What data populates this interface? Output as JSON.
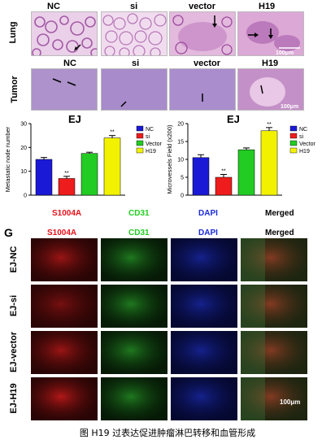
{
  "he_panels": {
    "columns": [
      "NC",
      "si",
      "vector",
      "H19"
    ],
    "row_labels": [
      "Lung",
      "Tumor"
    ],
    "scale_bar": "100μm"
  },
  "charts_title": "EJ",
  "chart_data": [
    {
      "type": "bar",
      "title": "EJ",
      "ylabel": "Metastatic node number",
      "categories": [
        "NC",
        "si",
        "Vector",
        "H19"
      ],
      "values": [
        15,
        7,
        17.5,
        24
      ],
      "errors": [
        0.8,
        0.9,
        0.5,
        1.0
      ],
      "significance": [
        "",
        "**",
        "",
        "**"
      ],
      "ylim": [
        0,
        30
      ],
      "yticks": [
        0,
        10,
        20,
        30
      ],
      "legend": [
        "NC",
        "si",
        "Vector",
        "H19"
      ],
      "legend_position": "top-right",
      "colors": [
        "#1a1ad6",
        "#ee1c1c",
        "#22cc22",
        "#f2f200"
      ]
    },
    {
      "type": "bar",
      "title": "EJ",
      "ylabel": "Microvessels Field (x200)",
      "categories": [
        "NC",
        "si",
        "Vector",
        "H19"
      ],
      "values": [
        10.5,
        5,
        12.7,
        18
      ],
      "errors": [
        0.8,
        0.8,
        0.5,
        0.9
      ],
      "significance": [
        "",
        "**",
        "",
        "**"
      ],
      "ylim": [
        0,
        20
      ],
      "yticks": [
        0,
        5,
        10,
        15,
        20
      ],
      "legend": [
        "NC",
        "si",
        "Vector",
        "H19"
      ],
      "legend_position": "top-right",
      "colors": [
        "#1a1ad6",
        "#ee1c1c",
        "#22cc22",
        "#f2f200"
      ]
    }
  ],
  "stain_labels_upper": [
    {
      "text": "S1004A",
      "color": "#e8101a"
    },
    {
      "text": "CD31",
      "color": "#1fcf1f"
    },
    {
      "text": "DAPI",
      "color": "#1a2bd8"
    },
    {
      "text": "Merged",
      "color": "#000000"
    }
  ],
  "panel_g": {
    "letter": "G",
    "stains": [
      {
        "text": "S1004A",
        "color": "#e8101a"
      },
      {
        "text": "CD31",
        "color": "#1fcf1f"
      },
      {
        "text": "DAPI",
        "color": "#1a2bd8"
      },
      {
        "text": "Merged",
        "color": "#000000"
      }
    ],
    "rows": [
      "EJ-NC",
      "EJ-si",
      "EJ-vector",
      "EJ-H19"
    ],
    "scale_bar": "100μm"
  },
  "caption": "图 H19 过表达促进肿瘤淋巴转移和血管形成"
}
